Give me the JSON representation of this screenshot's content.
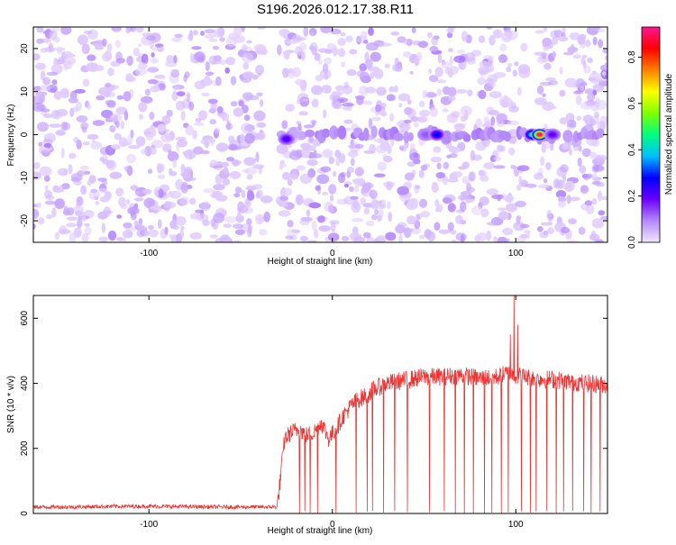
{
  "figure": {
    "title": "S196.2026.012.17.38.R11"
  },
  "chart_data": [
    {
      "type": "heatmap",
      "title": "S196.2026.012.17.38.R11",
      "xlabel": "Height of straight line (km)",
      "ylabel": "Frequency (Hz)",
      "xlim": [
        -163,
        150
      ],
      "ylim": [
        -25,
        25
      ],
      "x_ticks": [
        -100,
        0,
        100
      ],
      "x_tick_labels": [
        "-100",
        "0",
        "100"
      ],
      "y_ticks": [
        -20,
        -10,
        0,
        10,
        20
      ],
      "y_tick_labels": [
        "-20",
        "-10",
        "0",
        "10",
        "20"
      ],
      "colorbar": {
        "label": "Normalized spectral amplitude",
        "range": [
          0.0,
          0.93
        ],
        "ticks": [
          0.0,
          0.2,
          0.4,
          0.6,
          0.8
        ],
        "tick_labels": [
          "0.0",
          "0.2",
          "0.4",
          "0.6",
          "0.8"
        ],
        "colors": [
          "#f2e6ff",
          "#b388ff",
          "#6a00ff",
          "#0000ff",
          "#00bfff",
          "#00ff7f",
          "#7fff00",
          "#ffff00",
          "#ff8000",
          "#ff0000",
          "#ff1493"
        ]
      },
      "background_amplitude_range": [
        0.02,
        0.1
      ],
      "gaps_km": [
        [
          -35,
          -28
        ],
        [
          105,
          112
        ]
      ],
      "band_frequency_hz": 0,
      "peaks": [
        {
          "x": -25,
          "y": -1,
          "amplitude": 0.22
        },
        {
          "x": 51,
          "y": 0,
          "amplitude": 0.13
        },
        {
          "x": 57,
          "y": 0,
          "amplitude": 0.28
        },
        {
          "x": 109,
          "y": 0,
          "amplitude": 0.45
        },
        {
          "x": 113,
          "y": 0,
          "amplitude": 0.93
        },
        {
          "x": 120,
          "y": 0,
          "amplitude": 0.2
        }
      ]
    },
    {
      "type": "line",
      "xlabel": "Height of straight line (km)",
      "ylabel": "SNR (10 * v/v)",
      "xlim": [
        -163,
        150
      ],
      "ylim": [
        0,
        670
      ],
      "x_ticks": [
        -100,
        0,
        100
      ],
      "x_tick_labels": [
        "-100",
        "0",
        "100"
      ],
      "y_ticks": [
        0,
        200,
        400,
        600
      ],
      "y_tick_labels": [
        "0",
        "200",
        "400",
        "600"
      ],
      "series": [
        {
          "name": "SNR",
          "color": "#ee3333",
          "x": [
            -163,
            -140,
            -120,
            -100,
            -80,
            -60,
            -40,
            -30,
            -26,
            -22,
            -18,
            -14,
            -10,
            -6,
            -2,
            2,
            6,
            10,
            14,
            18,
            22,
            26,
            30,
            34,
            40,
            50,
            60,
            70,
            80,
            90,
            95,
            100,
            105,
            110,
            120,
            130,
            140,
            150
          ],
          "values": [
            20,
            20,
            22,
            22,
            21,
            20,
            20,
            20,
            230,
            250,
            260,
            240,
            250,
            280,
            230,
            260,
            300,
            330,
            350,
            360,
            380,
            390,
            400,
            405,
            410,
            420,
            420,
            425,
            415,
            420,
            430,
            425,
            420,
            415,
            412,
            405,
            400,
            395
          ]
        }
      ],
      "dropouts_km": [
        -18,
        -15,
        -12,
        -8,
        2,
        13,
        19,
        22,
        28,
        34,
        41,
        53,
        61,
        67,
        72,
        77,
        83,
        87,
        92,
        96,
        103,
        108,
        111,
        117,
        122,
        126,
        131,
        137,
        141,
        146
      ],
      "spikes": [
        {
          "x": 97,
          "y": 550
        },
        {
          "x": 99,
          "y": 670
        },
        {
          "x": 101,
          "y": 580
        }
      ]
    }
  ]
}
